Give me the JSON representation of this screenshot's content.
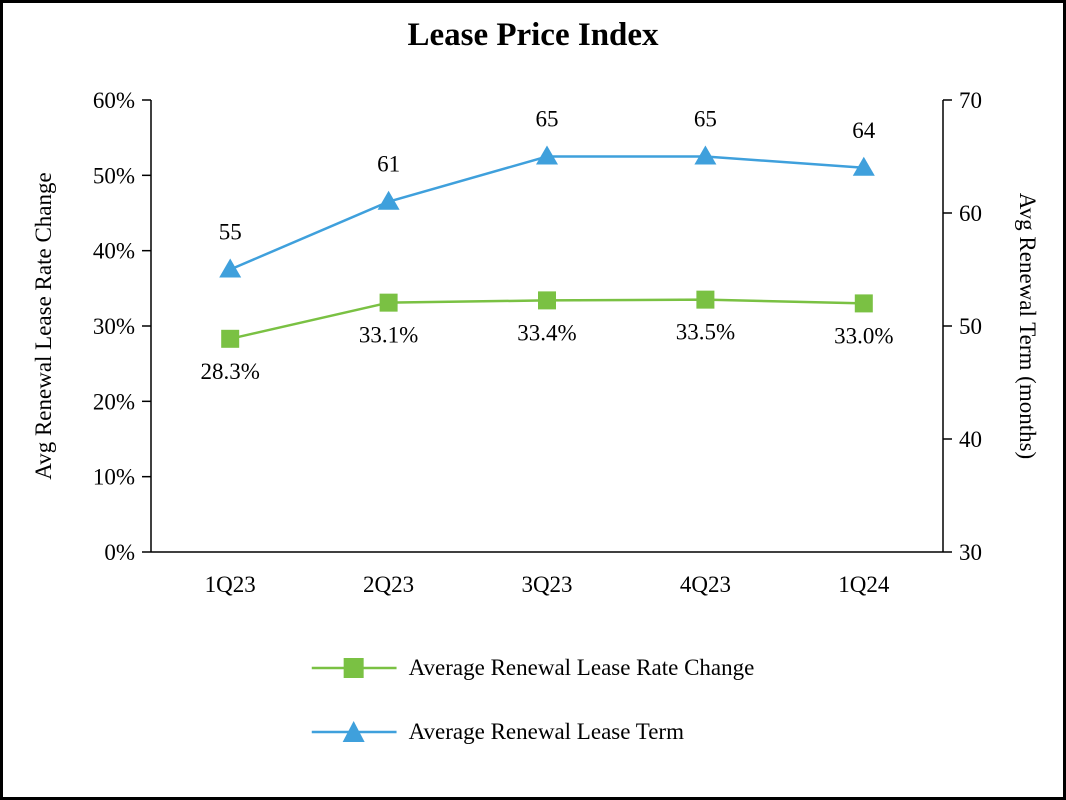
{
  "title": "Lease Price Index",
  "chart_data": {
    "type": "line",
    "title": "Lease Price Index",
    "categories": [
      "1Q23",
      "2Q23",
      "3Q23",
      "4Q23",
      "1Q24"
    ],
    "series": [
      {
        "name": "Average Renewal Lease Rate Change",
        "axis": "left",
        "marker": "square",
        "color": "#7AC143",
        "values": [
          28.3,
          33.1,
          33.4,
          33.5,
          33.0
        ],
        "data_labels": [
          "28.3%",
          "33.1%",
          "33.4%",
          "33.5%",
          "33.0%"
        ],
        "label_position": "below"
      },
      {
        "name": "Average Renewal Lease Term",
        "axis": "right",
        "marker": "triangle",
        "color": "#3FA0DC",
        "values": [
          55,
          61,
          65,
          65,
          64
        ],
        "data_labels": [
          "55",
          "61",
          "65",
          "65",
          "64"
        ],
        "label_position": "above"
      }
    ],
    "left_axis": {
      "label": "Avg Renewal Lease Rate Change",
      "min": 0,
      "max": 60,
      "tick_step": 10,
      "tick_labels": [
        "0%",
        "10%",
        "20%",
        "30%",
        "40%",
        "50%",
        "60%"
      ]
    },
    "right_axis": {
      "label": "Avg Renewal Term (months)",
      "min": 30,
      "max": 70,
      "tick_step": 10,
      "tick_labels": [
        "30",
        "40",
        "50",
        "60",
        "70"
      ]
    },
    "legend_position": "bottom",
    "grid": false,
    "axis_color": "#000000",
    "text_color": "#000000",
    "background_color": "#ffffff"
  }
}
